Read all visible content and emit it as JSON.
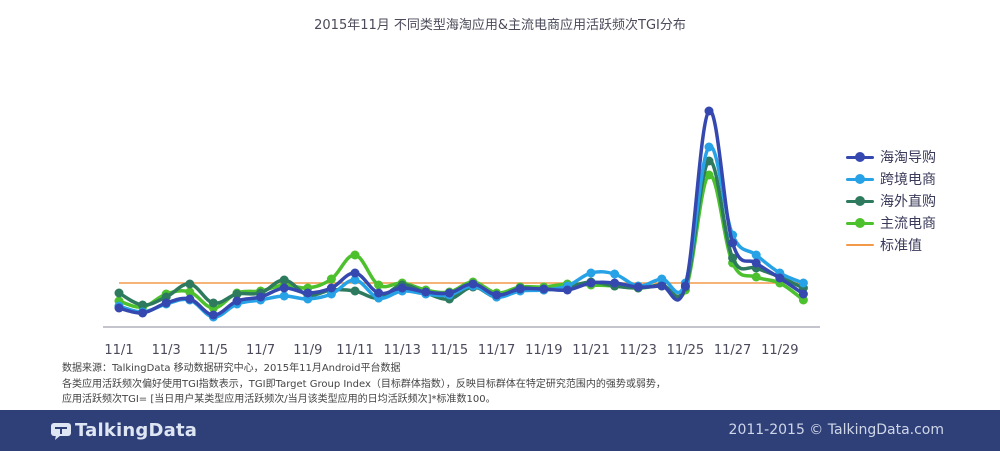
{
  "chart_data": {
    "type": "line",
    "title": "2015年11月 不同类型海淘应用&主流电商应用活跃频次TGI分布",
    "categories": [
      "11/1",
      "11/2",
      "11/3",
      "11/4",
      "11/5",
      "11/6",
      "11/7",
      "11/8",
      "11/9",
      "11/10",
      "11/11",
      "11/12",
      "11/13",
      "11/14",
      "11/15",
      "11/16",
      "11/17",
      "11/18",
      "11/19",
      "11/20",
      "11/21",
      "11/22",
      "11/23",
      "11/24",
      "11/25",
      "11/26",
      "11/27",
      "11/28",
      "11/29",
      "11/30"
    ],
    "tick_labels": [
      "11/1",
      "11/3",
      "11/5",
      "11/7",
      "11/9",
      "11/11",
      "11/13",
      "11/15",
      "11/17",
      "11/19",
      "11/21",
      "11/23",
      "11/25",
      "11/27",
      "11/29"
    ],
    "ylim": [
      55,
      300
    ],
    "reference": {
      "name": "标准值",
      "value": 100,
      "color": "#f39a4a"
    },
    "series": [
      {
        "name": "海淘导购",
        "color": "#3448b0",
        "values": [
          75,
          70,
          80,
          84,
          68,
          82,
          86,
          95,
          90,
          95,
          110,
          90,
          95,
          91,
          90,
          99,
          88,
          94,
          94,
          93,
          100,
          100,
          96,
          97,
          97,
          272,
          140,
          120,
          105,
          89
        ]
      },
      {
        "name": "跨境电商",
        "color": "#27a2e6",
        "values": [
          77,
          71,
          79,
          83,
          66,
          79,
          83,
          87,
          84,
          89,
          103,
          85,
          92,
          89,
          88,
          97,
          86,
          92,
          93,
          97,
          110,
          109,
          97,
          104,
          100,
          236,
          148,
          128,
          110,
          100
        ]
      },
      {
        "name": "海外直购",
        "color": "#2e7a5e",
        "values": [
          90,
          78,
          86,
          99,
          80,
          89,
          90,
          103,
          88,
          93,
          92,
          85,
          98,
          90,
          84,
          96,
          86,
          95,
          93,
          96,
          101,
          97,
          95,
          98,
          96,
          222,
          125,
          115,
          106,
          95
        ]
      },
      {
        "name": "主流电商",
        "color": "#4dc02e",
        "values": [
          82,
          76,
          89,
          91,
          75,
          90,
          92,
          98,
          95,
          104,
          128,
          98,
          100,
          93,
          91,
          101,
          90,
          96,
          96,
          99,
          98,
          97,
          95,
          97,
          93,
          208,
          120,
          106,
          100,
          83
        ]
      }
    ],
    "notes": [
      "数据来源：TalkingData 移动数据研究中心，2015年11月Android平台数据",
      "各类应用活跃频次偏好使用TGI指数表示，TGI即Target Group Index（目标群体指数），反映目标群体在特定研究范围内的强势或弱势，",
      "应用活跃频次TGI= [当日用户某类型应用活跃频次/当月该类型应用的日均活跃频次]*标准数100。"
    ]
  },
  "footer": {
    "logo_text": "TalkingData",
    "copyright": "2011-2015 © TalkingData.com"
  }
}
